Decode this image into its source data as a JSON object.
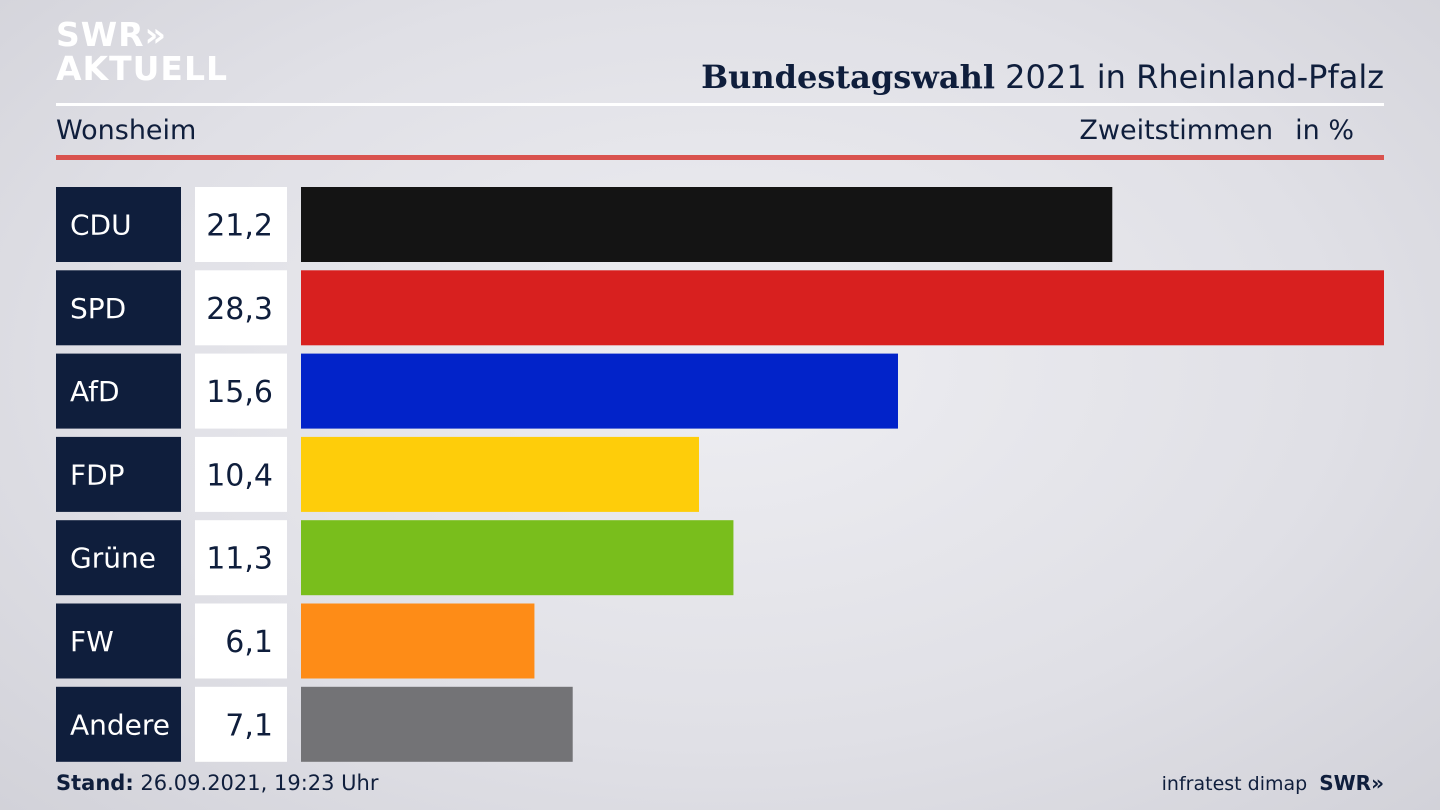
{
  "header": {
    "logo_line1": "SWR»",
    "logo_line2": "AKTUELL",
    "title_bold": "Bundestagswahl",
    "title_rest": " 2021 in Rheinland-Pfalz",
    "location": "Wonsheim",
    "measure": "Zweitstimmen",
    "unit": "in %"
  },
  "footer": {
    "stand_label": "Stand:",
    "stand_value": " 26.09.2021, 19:23 Uhr",
    "source": "infratest dimap",
    "brand": "SWR»"
  },
  "chart_data": {
    "type": "bar",
    "orientation": "horizontal",
    "categories": [
      "CDU",
      "SPD",
      "AfD",
      "FDP",
      "Grüne",
      "FW",
      "Andere"
    ],
    "values": [
      21.2,
      28.3,
      15.6,
      10.4,
      11.3,
      6.1,
      7.1
    ],
    "value_labels": [
      "21,2",
      "28,3",
      "15,6",
      "10,4",
      "11,3",
      "6,1",
      "7,1"
    ],
    "colors": [
      "#141414",
      "#d8201f",
      "#0223c9",
      "#fecd0a",
      "#79be1c",
      "#fe8c17",
      "#737376"
    ],
    "xlim": [
      0,
      28.3
    ],
    "grid": false,
    "legend": "none"
  }
}
